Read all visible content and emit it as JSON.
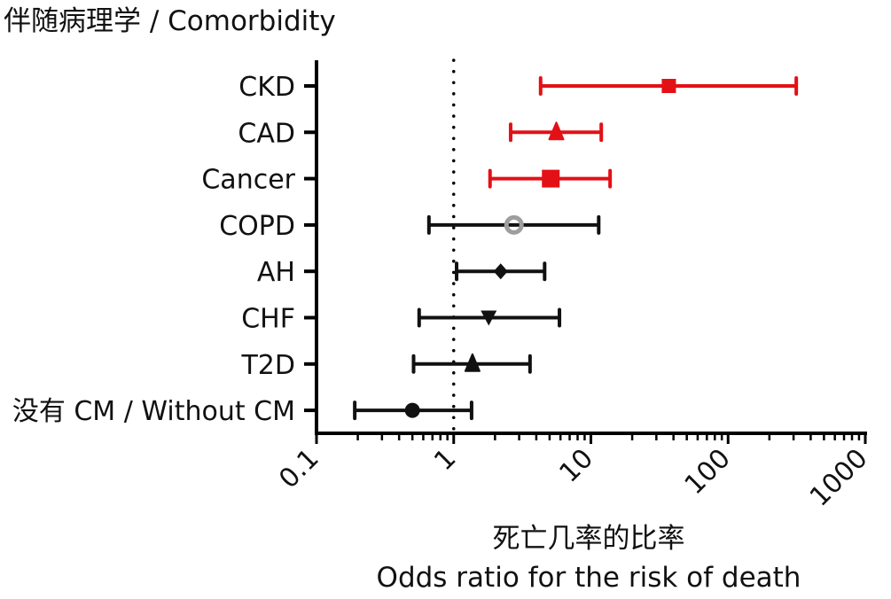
{
  "chart_data": {
    "type": "forest",
    "title": "伴随病理学 / Comorbidity",
    "xlabel_cn": "死亡几率的比率",
    "xlabel_en": "Odds ratio for the risk of death",
    "ylabel": "",
    "xscale": "log",
    "xlim": [
      0.1,
      1000
    ],
    "x_ticks": [
      "0.1",
      "1",
      "10",
      "100",
      "1000"
    ],
    "reference_line": 1,
    "grid": false,
    "legend": "none",
    "series": [
      {
        "label": "CKD",
        "or": 37,
        "ci_low": 4.3,
        "ci_high": 314,
        "marker": "square",
        "color": "#e31016"
      },
      {
        "label": "CAD",
        "or": 5.6,
        "ci_low": 2.6,
        "ci_high": 11.9,
        "marker": "triangle-up",
        "color": "#e31016"
      },
      {
        "label": "Cancer",
        "or": 5.1,
        "ci_low": 1.84,
        "ci_high": 13.8,
        "marker": "square-large",
        "color": "#e31016"
      },
      {
        "label": "COPD",
        "or": 2.75,
        "ci_low": 0.66,
        "ci_high": 11.4,
        "marker": "ring",
        "color": "#111111",
        "marker_color": "#9e9e9e"
      },
      {
        "label": "AH",
        "or": 2.2,
        "ci_low": 1.05,
        "ci_high": 4.6,
        "marker": "diamond",
        "color": "#111111"
      },
      {
        "label": "CHF",
        "or": 1.8,
        "ci_low": 0.56,
        "ci_high": 5.9,
        "marker": "triangle-down",
        "color": "#111111"
      },
      {
        "label": "T2D",
        "or": 1.37,
        "ci_low": 0.51,
        "ci_high": 3.6,
        "marker": "triangle-up",
        "color": "#111111"
      },
      {
        "label": "没有 CM / Without CM",
        "or": 0.5,
        "ci_low": 0.19,
        "ci_high": 1.35,
        "marker": "circle",
        "color": "#111111"
      }
    ]
  }
}
